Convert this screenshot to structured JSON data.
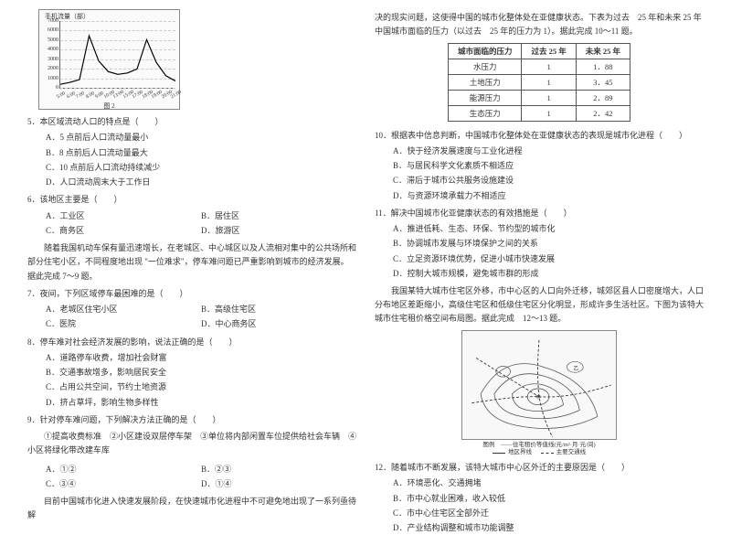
{
  "chart": {
    "ylabel": "手机流量（部）",
    "caption": "图 2",
    "yticks": [
      "7000",
      "6000",
      "5000",
      "4000",
      "3000",
      "2000",
      "1000",
      "0"
    ],
    "xticks": [
      "5:00",
      "6:00",
      "7:00",
      "8:00",
      "9:00",
      "10:00",
      "13:00",
      "15:00",
      "17:00",
      "18:00",
      "19:00",
      "20:00",
      "21:00"
    ],
    "line_color": "#000000",
    "grid_color": "#cccccc",
    "bg": "#fafafa",
    "points_y_ratio": [
      0.05,
      0.08,
      0.12,
      0.78,
      0.4,
      0.24,
      0.2,
      0.22,
      0.28,
      0.72,
      0.38,
      0.18,
      0.1
    ]
  },
  "q5": {
    "stem": "5．本区域流动人口的特点是（　　）",
    "opts": [
      "A．5 点前后人口流动量最小",
      "B．8 点前后人口流动量最大",
      "C．10 点前后人口流动持续减少",
      "D．人口流动周末大于工作日"
    ]
  },
  "q6": {
    "stem": "6．该地区主要是（　　）",
    "opts": [
      "A．工业区",
      "B．居住区",
      "C．商务区",
      "D．旅游区"
    ]
  },
  "p1": "随着我国机动车保有量迅速增长，在老城区、中心城区以及人流相对集中的公共场所和部分住宅小区，不同程度地出现 \"一位难求\"，停车难问题已严重影响到城市的经济发展。据此完成 7～9 题。",
  "q7": {
    "stem": "7．夜间，下列区域停车最困难的是（　　）",
    "opts": [
      "A．老城区住宅小区",
      "B．高级住宅区",
      "C．医院",
      "D．中心商务区"
    ]
  },
  "q8": {
    "stem": "8．停车难对社会经济发展的影响，说法正确的是（　　）",
    "opts": [
      "A．道路停车收费，增加社会财富",
      "B．交通事故增多，影响居民安全",
      "C．占用公共空间，节约土地资源",
      "D．挤占草坪，影响生物多样性"
    ]
  },
  "q9": {
    "stem": "9．针对停车难问题，下列解决方法正确的是（　　）",
    "pre": "①提高收费标准　②小区建设双层停车架　③单位将内部闲置车位提供给社会车辆　④小区将绿化带改建车库",
    "opts": [
      "A．①②",
      "B．②③",
      "C．③④",
      "D．①④"
    ]
  },
  "p2_a": "目前中国城市化进入快速发展阶段，在快速城市化进程中不可避免地出现了一系列亟待解",
  "p2_b": "决的现实问题，这使得中国的城市化整体处在亚健康状态。下表为过去　25 年和未来 25 年中国城市面临的压力（以过去　25 年的压力为 1）。据此完成 10～11 题。",
  "table": {
    "head": [
      "城市面临的压力",
      "过去 25 年",
      "未来 25 年"
    ],
    "rows": [
      [
        "水压力",
        "1",
        "1．88"
      ],
      [
        "土地压力",
        "1",
        "3．45"
      ],
      [
        "能源压力",
        "1",
        "2．89"
      ],
      [
        "生态压力",
        "1",
        "2．42"
      ]
    ]
  },
  "q10": {
    "stem": "10．根据表中信息判断，中国城市化整体处在亚健康状态的表现是城市化进程（　　）",
    "opts": [
      "A．快于经济发展速度与工业化进程",
      "B．与居民科学文化素质不相适应",
      "C．滞后于城市公共服务设施建设",
      "D．与资源环境承载力不相适应"
    ]
  },
  "q11": {
    "stem": "11．解决中国城市化亚健康状态的有效措施是（　　）",
    "opts": [
      "A．推进低耗、生态、环保、节约型的城市化",
      "B．协调城市发展与环境保护之间的关系",
      "C．立足资源环境优势，促进小城市快速发展",
      "D．控制大城市规模，避免城市群的形成"
    ]
  },
  "p3": "我国某特大城市住宅区外移，市中心区的人口向外迁移，城郊区县人口密度增大，人口分布地区差距缩小，高级住宅区和低级住宅区分化明显，形成许多生活社区。下图为该特大城市住宅租价格空间布局图。据此完成　12～13 题。",
  "map": {
    "caption_main": "图例　——住宅租价等值线(元/m²·月·元/间)",
    "legend": [
      {
        "style": "solid",
        "label": "地区界线"
      },
      {
        "style": "dash",
        "label": "主要交通线"
      }
    ]
  },
  "q12": {
    "stem": "12．随着城市不断发展，该特大城市中心区外迁的主要原因是（　　）",
    "opts": [
      "A．环境恶化、交通拥堵",
      "B．市中心就业困难，收入较低",
      "C．市中心住宅区全部外迁",
      "D．产业结构调整和城市功能调整"
    ]
  }
}
